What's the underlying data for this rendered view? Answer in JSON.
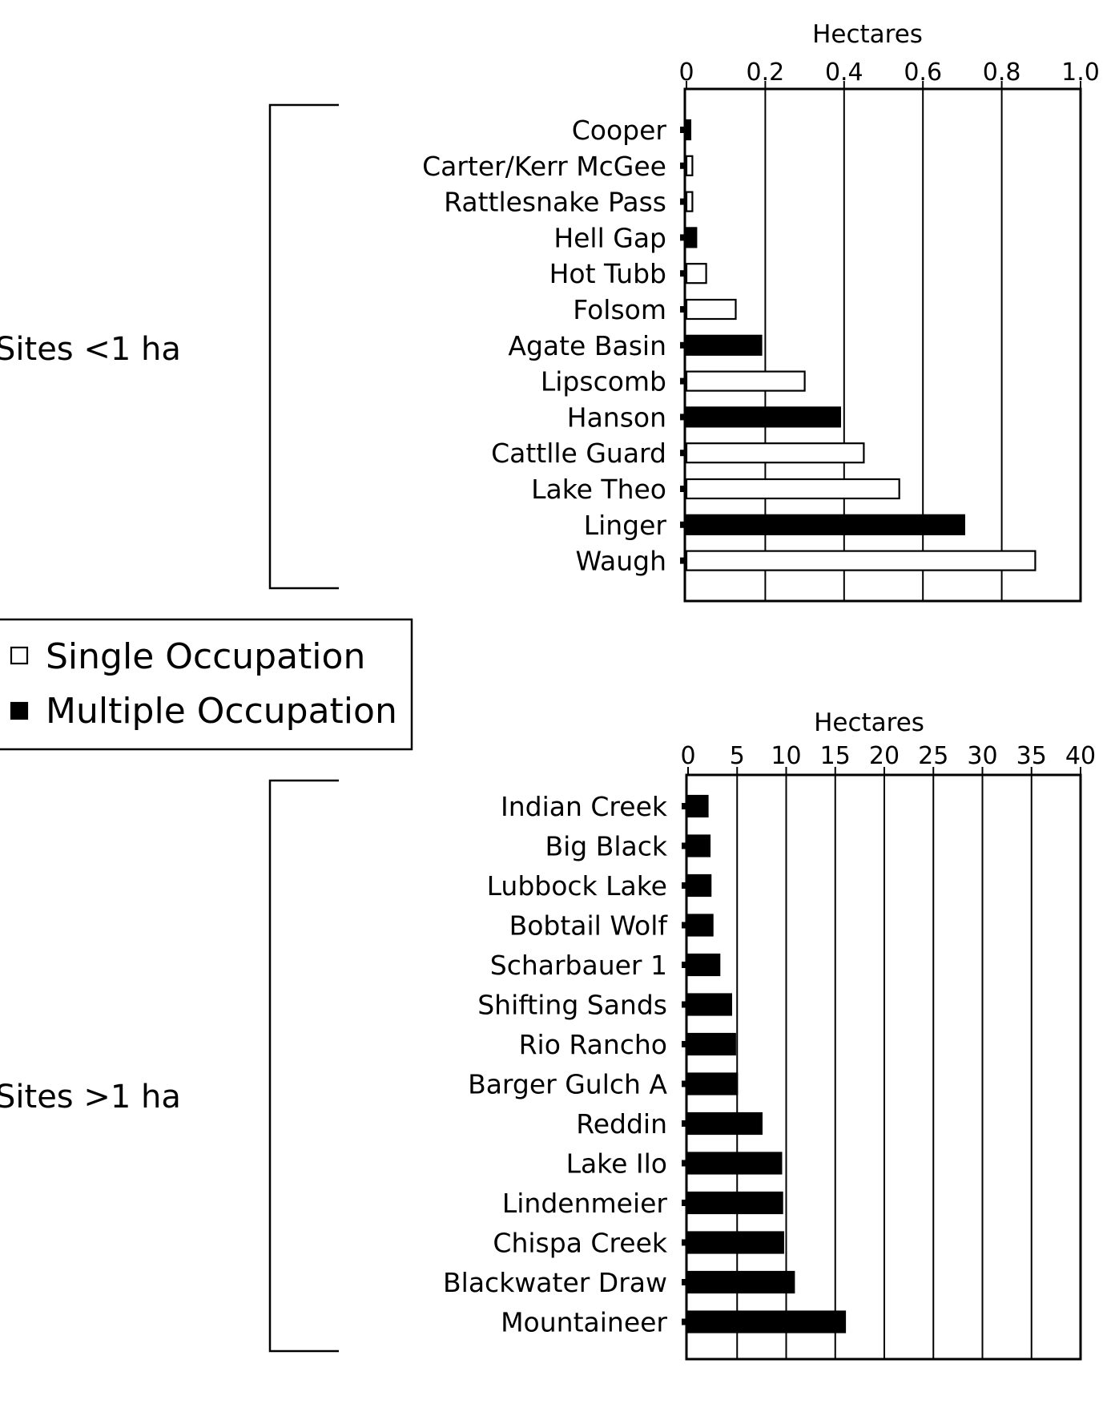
{
  "chart_data": [
    {
      "type": "bar",
      "orientation": "horizontal",
      "group_label": "Sites <1 ha",
      "xlabel": "Hectares",
      "xlim": [
        0,
        1.0
      ],
      "xticks": [
        "0",
        "0.2",
        "0.4",
        "0.6",
        "0.8",
        "1.0"
      ],
      "grid": true,
      "categories": [
        "Cooper",
        "Carter/Kerr McGee",
        "Rattlesnake Pass",
        "Hell Gap",
        "Hot Tubb",
        "Folsom",
        "Agate Basin",
        "Lipscomb",
        "Hanson",
        "Cattlle Guard",
        "Lake Theo",
        "Linger",
        "Waugh"
      ],
      "values": [
        0.01,
        0.015,
        0.015,
        0.025,
        0.05,
        0.125,
        0.19,
        0.3,
        0.39,
        0.45,
        0.54,
        0.705,
        0.885
      ],
      "occupation": [
        "Multiple",
        "Single",
        "Single",
        "Multiple",
        "Single",
        "Single",
        "Multiple",
        "Single",
        "Multiple",
        "Single",
        "Single",
        "Multiple",
        "Single"
      ]
    },
    {
      "type": "bar",
      "orientation": "horizontal",
      "group_label": "Sites >1 ha",
      "xlabel": "Hectares",
      "xlim": [
        0,
        40
      ],
      "xticks": [
        "0",
        "5",
        "10",
        "15",
        "20",
        "25",
        "30",
        "35",
        "40"
      ],
      "grid": true,
      "categories": [
        "Indian Creek",
        "Big Black",
        "Lubbock Lake",
        "Bobtail Wolf",
        "Scharbauer 1",
        "Shifting Sands",
        "Rio Rancho",
        "Barger Gulch A",
        "Reddin",
        "Lake Ilo",
        "Lindenmeier",
        "Chispa Creek",
        "Blackwater Draw",
        "Mountaineer"
      ],
      "values": [
        2.0,
        2.2,
        2.3,
        2.5,
        3.2,
        4.4,
        4.8,
        5.0,
        7.5,
        9.5,
        9.6,
        9.7,
        10.8,
        16.0
      ],
      "occupation": [
        "Multiple",
        "Multiple",
        "Multiple",
        "Multiple",
        "Multiple",
        "Multiple",
        "Multiple",
        "Multiple",
        "Multiple",
        "Multiple",
        "Multiple",
        "Multiple",
        "Multiple",
        "Multiple"
      ]
    }
  ],
  "legend": {
    "items": [
      {
        "label": "Single Occupation",
        "symbol": "□",
        "fill": "#ffffff"
      },
      {
        "label": "Multiple Occupation",
        "symbol": "■",
        "fill": "#000000"
      }
    ]
  },
  "colors": {
    "single": "#ffffff",
    "multiple": "#000000",
    "stroke": "#000000"
  }
}
